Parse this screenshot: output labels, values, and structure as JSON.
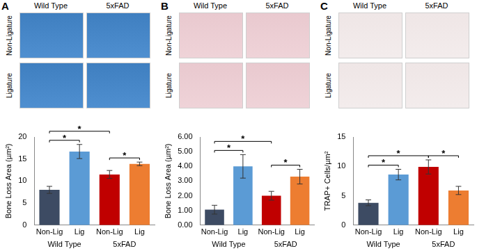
{
  "panels": [
    {
      "label": "A",
      "photo_columns": [
        "Wild Type",
        "5xFAD"
      ],
      "photo_rows": [
        "Non-\nLigature",
        "Ligature"
      ]
    },
    {
      "label": "B",
      "photo_columns": [
        "Wild Type",
        "5xFAD"
      ],
      "photo_rows": [
        "Non-\nLigature",
        "Ligature"
      ]
    },
    {
      "label": "C",
      "photo_columns": [
        "Wild Type",
        "5xFAD"
      ],
      "photo_rows": [
        "Non-\nLigature",
        "Ligature"
      ]
    }
  ],
  "chart_data": [
    {
      "type": "bar",
      "y_label": "Bone Loss Area (µm²)",
      "categories": [
        "Non-Lig",
        "Lig",
        "Non-Lig",
        "Lig"
      ],
      "group_labels": [
        "Wild Type",
        "Wild Type",
        "5xFAD",
        "5xFAD"
      ],
      "values": [
        8.0,
        16.7,
        11.5,
        13.9
      ],
      "errors": [
        0.8,
        1.6,
        0.9,
        0.4
      ],
      "colors": [
        "#3d4b63",
        "#5b9bd5",
        "#c00000",
        "#ed7d31"
      ],
      "ylim": [
        0,
        20
      ],
      "yticks": [
        0,
        5,
        10,
        15,
        20
      ],
      "grid": false,
      "significance": [
        {
          "from": 0,
          "to": 1,
          "label": "*"
        },
        {
          "from": 0,
          "to": 2,
          "label": "*"
        },
        {
          "from": 2,
          "to": 3,
          "label": "*"
        }
      ]
    },
    {
      "type": "bar",
      "y_label": "Bone Loss Area (µm²)",
      "categories": [
        "Non-Lig",
        "Lig",
        "Non-Lig",
        "Lig"
      ],
      "group_labels": [
        "Wild Type",
        "Wild Type",
        "5xFAD",
        "5xFAD"
      ],
      "values": [
        1.05,
        4.0,
        2.0,
        3.3
      ],
      "errors": [
        0.3,
        0.8,
        0.3,
        0.5
      ],
      "colors": [
        "#3d4b63",
        "#5b9bd5",
        "#c00000",
        "#ed7d31"
      ],
      "ylim": [
        0,
        6
      ],
      "yticks": [
        {
          "value": 0,
          "label": "0.00"
        },
        {
          "value": 1,
          "label": "1.00"
        },
        {
          "value": 2,
          "label": "2.00"
        },
        {
          "value": 3,
          "label": "3.00"
        },
        {
          "value": 4,
          "label": "4.00"
        },
        {
          "value": 5,
          "label": "5.00"
        },
        {
          "value": 6,
          "label": "6.00"
        }
      ],
      "grid": false,
      "significance": [
        {
          "from": 0,
          "to": 1,
          "label": "*"
        },
        {
          "from": 0,
          "to": 2,
          "label": "*"
        },
        {
          "from": 2,
          "to": 3,
          "label": "*"
        }
      ]
    },
    {
      "type": "bar",
      "y_label": "TRAP+ Cells/µm²",
      "categories": [
        "Non-Lig",
        "Lig",
        "Non-Lig",
        "Lig"
      ],
      "group_labels": [
        "Wild Type",
        "Wild Type",
        "5xFAD",
        "5xFAD"
      ],
      "values": [
        3.8,
        8.6,
        9.9,
        5.9
      ],
      "errors": [
        0.5,
        0.9,
        1.2,
        0.7
      ],
      "colors": [
        "#3d4b63",
        "#5b9bd5",
        "#c00000",
        "#ed7d31"
      ],
      "ylim": [
        0,
        15
      ],
      "yticks": [
        0,
        5,
        10,
        15
      ],
      "grid": false,
      "significance": [
        {
          "from": 0,
          "to": 1,
          "label": "*"
        },
        {
          "from": 0,
          "to": 2,
          "label": "*"
        },
        {
          "from": 2,
          "to": 3,
          "label": "*"
        }
      ]
    }
  ]
}
